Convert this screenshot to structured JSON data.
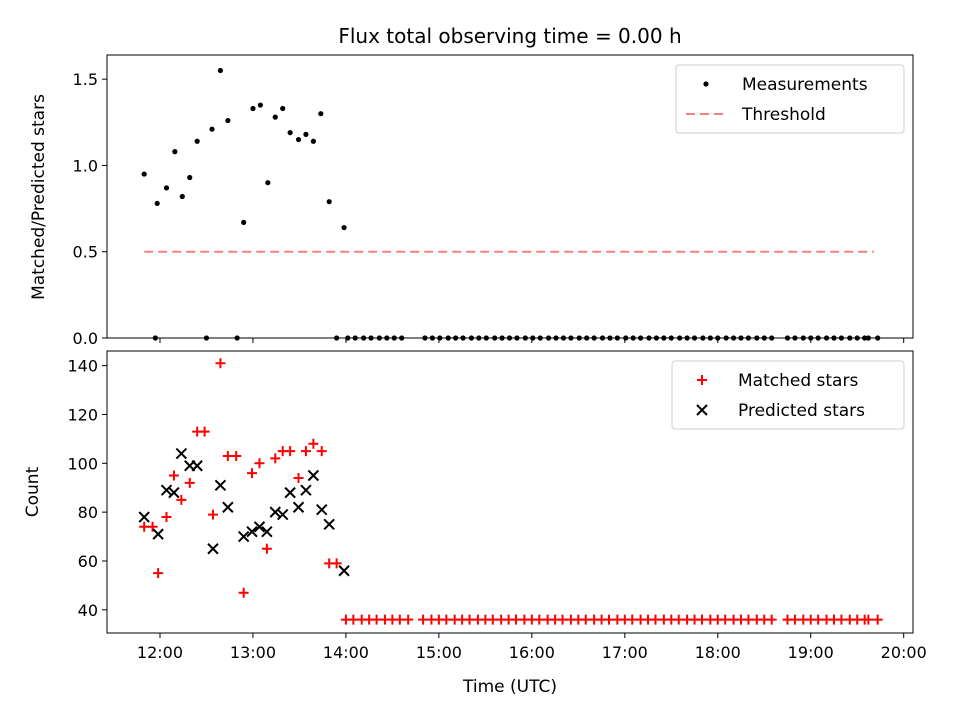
{
  "chart_data": [
    {
      "type": "scatter",
      "title": "Flux total observing time = 0.00 h",
      "xlabel": "",
      "ylabel": "Matched/Predicted stars",
      "xlim": [
        11.43,
        20.1
      ],
      "ylim": [
        0,
        1.64
      ],
      "yticks": [
        0.0,
        0.5,
        1.0,
        1.5
      ],
      "ytick_labels": [
        "0.0",
        "0.5",
        "1.0",
        "1.5"
      ],
      "xticks": [
        12,
        13,
        14,
        15,
        16,
        17,
        18,
        19,
        20
      ],
      "legend_position": "top-right",
      "grid": false,
      "series": [
        {
          "name": "Measurements",
          "kind": "scatter",
          "marker": "dot",
          "color": "#000000",
          "points": [
            [
              11.83,
              0.95
            ],
            [
              11.97,
              0.78
            ],
            [
              12.07,
              0.87
            ],
            [
              12.16,
              1.08
            ],
            [
              12.24,
              0.82
            ],
            [
              12.32,
              0.93
            ],
            [
              12.4,
              1.14
            ],
            [
              12.56,
              1.21
            ],
            [
              12.65,
              1.55
            ],
            [
              12.73,
              1.26
            ],
            [
              12.9,
              0.67
            ],
            [
              13.0,
              1.33
            ],
            [
              13.08,
              1.35
            ],
            [
              13.16,
              0.9
            ],
            [
              13.24,
              1.28
            ],
            [
              13.32,
              1.33
            ],
            [
              13.4,
              1.19
            ],
            [
              13.49,
              1.15
            ],
            [
              13.57,
              1.18
            ],
            [
              13.65,
              1.14
            ],
            [
              13.73,
              1.3
            ],
            [
              13.82,
              0.79
            ],
            [
              13.98,
              0.64
            ],
            [
              11.95,
              0.0
            ],
            [
              12.5,
              0.0
            ],
            [
              12.83,
              0.0
            ],
            [
              13.9,
              0.0
            ],
            [
              14.02,
              0.0
            ],
            [
              14.1,
              0.0
            ],
            [
              14.19,
              0.0
            ],
            [
              14.27,
              0.0
            ],
            [
              14.36,
              0.0
            ],
            [
              14.44,
              0.0
            ],
            [
              14.52,
              0.0
            ],
            [
              14.6,
              0.0
            ],
            [
              14.85,
              0.0
            ],
            [
              14.93,
              0.0
            ],
            [
              15.01,
              0.0
            ],
            [
              15.1,
              0.0
            ],
            [
              15.18,
              0.0
            ],
            [
              15.26,
              0.0
            ],
            [
              15.35,
              0.0
            ],
            [
              15.43,
              0.0
            ],
            [
              15.51,
              0.0
            ],
            [
              15.6,
              0.0
            ],
            [
              15.68,
              0.0
            ],
            [
              15.76,
              0.0
            ],
            [
              15.84,
              0.0
            ],
            [
              15.93,
              0.0
            ],
            [
              16.01,
              0.0
            ],
            [
              16.09,
              0.0
            ],
            [
              16.18,
              0.0
            ],
            [
              16.26,
              0.0
            ],
            [
              16.34,
              0.0
            ],
            [
              16.42,
              0.0
            ],
            [
              16.51,
              0.0
            ],
            [
              16.59,
              0.0
            ],
            [
              16.67,
              0.0
            ],
            [
              16.76,
              0.0
            ],
            [
              16.84,
              0.0
            ],
            [
              16.92,
              0.0
            ],
            [
              17.01,
              0.0
            ],
            [
              17.09,
              0.0
            ],
            [
              17.17,
              0.0
            ],
            [
              17.26,
              0.0
            ],
            [
              17.34,
              0.0
            ],
            [
              17.42,
              0.0
            ],
            [
              17.5,
              0.0
            ],
            [
              17.59,
              0.0
            ],
            [
              17.67,
              0.0
            ],
            [
              17.75,
              0.0
            ],
            [
              17.84,
              0.0
            ],
            [
              17.92,
              0.0
            ],
            [
              18.0,
              0.0
            ],
            [
              18.09,
              0.0
            ],
            [
              18.17,
              0.0
            ],
            [
              18.25,
              0.0
            ],
            [
              18.33,
              0.0
            ],
            [
              18.42,
              0.0
            ],
            [
              18.5,
              0.0
            ],
            [
              18.58,
              0.0
            ],
            [
              18.75,
              0.0
            ],
            [
              18.83,
              0.0
            ],
            [
              18.92,
              0.0
            ],
            [
              19.0,
              0.0
            ],
            [
              19.08,
              0.0
            ],
            [
              19.17,
              0.0
            ],
            [
              19.25,
              0.0
            ],
            [
              19.33,
              0.0
            ],
            [
              19.42,
              0.0
            ],
            [
              19.5,
              0.0
            ],
            [
              19.58,
              0.0
            ],
            [
              19.62,
              0.0
            ],
            [
              19.72,
              0.0
            ]
          ]
        },
        {
          "name": "Threshold",
          "kind": "line",
          "dash": true,
          "color": "#f08080",
          "points": [
            [
              11.83,
              0.5
            ],
            [
              19.68,
              0.5
            ]
          ]
        }
      ]
    },
    {
      "type": "scatter",
      "title": "",
      "xlabel": "Time (UTC)",
      "ylabel": "Count",
      "xlim": [
        11.43,
        20.1
      ],
      "ylim": [
        30.5,
        146
      ],
      "yticks": [
        40,
        60,
        80,
        100,
        120,
        140
      ],
      "ytick_labels": [
        "40",
        "60",
        "80",
        "100",
        "120",
        "140"
      ],
      "xticks": [
        12,
        13,
        14,
        15,
        16,
        17,
        18,
        19,
        20
      ],
      "xtick_labels": [
        "12:00",
        "13:00",
        "14:00",
        "15:00",
        "16:00",
        "17:00",
        "18:00",
        "19:00",
        "20:00"
      ],
      "legend_position": "top-right",
      "grid": false,
      "series": [
        {
          "name": "Matched stars",
          "kind": "scatter",
          "marker": "plus",
          "color": "#ff0000",
          "points": [
            [
              11.83,
              74
            ],
            [
              11.92,
              74
            ],
            [
              11.98,
              55
            ],
            [
              12.07,
              78
            ],
            [
              12.15,
              95
            ],
            [
              12.23,
              85
            ],
            [
              12.32,
              92
            ],
            [
              12.4,
              113
            ],
            [
              12.48,
              113
            ],
            [
              12.57,
              79
            ],
            [
              12.65,
              141
            ],
            [
              12.73,
              103
            ],
            [
              12.82,
              103
            ],
            [
              12.9,
              47
            ],
            [
              12.99,
              96
            ],
            [
              13.07,
              100
            ],
            [
              13.15,
              65
            ],
            [
              13.24,
              102
            ],
            [
              13.32,
              105
            ],
            [
              13.4,
              105
            ],
            [
              13.49,
              94
            ],
            [
              13.57,
              105
            ],
            [
              13.65,
              108
            ],
            [
              13.74,
              105
            ],
            [
              13.82,
              59
            ],
            [
              13.9,
              59
            ],
            [
              14.0,
              36
            ],
            [
              14.08,
              36
            ],
            [
              14.17,
              36
            ],
            [
              14.25,
              36
            ],
            [
              14.33,
              36
            ],
            [
              14.42,
              36
            ],
            [
              14.5,
              36
            ],
            [
              14.58,
              36
            ],
            [
              14.67,
              36
            ],
            [
              14.83,
              36
            ],
            [
              14.92,
              36
            ],
            [
              15.0,
              36
            ],
            [
              15.08,
              36
            ],
            [
              15.17,
              36
            ],
            [
              15.25,
              36
            ],
            [
              15.33,
              36
            ],
            [
              15.42,
              36
            ],
            [
              15.5,
              36
            ],
            [
              15.58,
              36
            ],
            [
              15.67,
              36
            ],
            [
              15.75,
              36
            ],
            [
              15.83,
              36
            ],
            [
              15.92,
              36
            ],
            [
              16.0,
              36
            ],
            [
              16.08,
              36
            ],
            [
              16.17,
              36
            ],
            [
              16.25,
              36
            ],
            [
              16.33,
              36
            ],
            [
              16.42,
              36
            ],
            [
              16.5,
              36
            ],
            [
              16.58,
              36
            ],
            [
              16.67,
              36
            ],
            [
              16.75,
              36
            ],
            [
              16.83,
              36
            ],
            [
              16.92,
              36
            ],
            [
              17.0,
              36
            ],
            [
              17.08,
              36
            ],
            [
              17.17,
              36
            ],
            [
              17.25,
              36
            ],
            [
              17.33,
              36
            ],
            [
              17.42,
              36
            ],
            [
              17.5,
              36
            ],
            [
              17.58,
              36
            ],
            [
              17.67,
              36
            ],
            [
              17.75,
              36
            ],
            [
              17.83,
              36
            ],
            [
              17.92,
              36
            ],
            [
              18.0,
              36
            ],
            [
              18.08,
              36
            ],
            [
              18.17,
              36
            ],
            [
              18.25,
              36
            ],
            [
              18.33,
              36
            ],
            [
              18.42,
              36
            ],
            [
              18.5,
              36
            ],
            [
              18.58,
              36
            ],
            [
              18.75,
              36
            ],
            [
              18.83,
              36
            ],
            [
              18.92,
              36
            ],
            [
              19.0,
              36
            ],
            [
              19.08,
              36
            ],
            [
              19.17,
              36
            ],
            [
              19.25,
              36
            ],
            [
              19.33,
              36
            ],
            [
              19.42,
              36
            ],
            [
              19.5,
              36
            ],
            [
              19.58,
              36
            ],
            [
              19.62,
              36
            ],
            [
              19.72,
              36
            ]
          ]
        },
        {
          "name": "Predicted stars",
          "kind": "scatter",
          "marker": "x",
          "color": "#000000",
          "points": [
            [
              11.83,
              78
            ],
            [
              11.98,
              71
            ],
            [
              12.07,
              89
            ],
            [
              12.15,
              88
            ],
            [
              12.23,
              104
            ],
            [
              12.32,
              99
            ],
            [
              12.4,
              99
            ],
            [
              12.57,
              65
            ],
            [
              12.65,
              91
            ],
            [
              12.73,
              82
            ],
            [
              12.9,
              70
            ],
            [
              12.99,
              72
            ],
            [
              13.07,
              74
            ],
            [
              13.15,
              72
            ],
            [
              13.24,
              80
            ],
            [
              13.32,
              79
            ],
            [
              13.4,
              88
            ],
            [
              13.49,
              82
            ],
            [
              13.57,
              89
            ],
            [
              13.65,
              95
            ],
            [
              13.74,
              81
            ],
            [
              13.82,
              75
            ],
            [
              13.98,
              56
            ]
          ]
        }
      ]
    }
  ]
}
